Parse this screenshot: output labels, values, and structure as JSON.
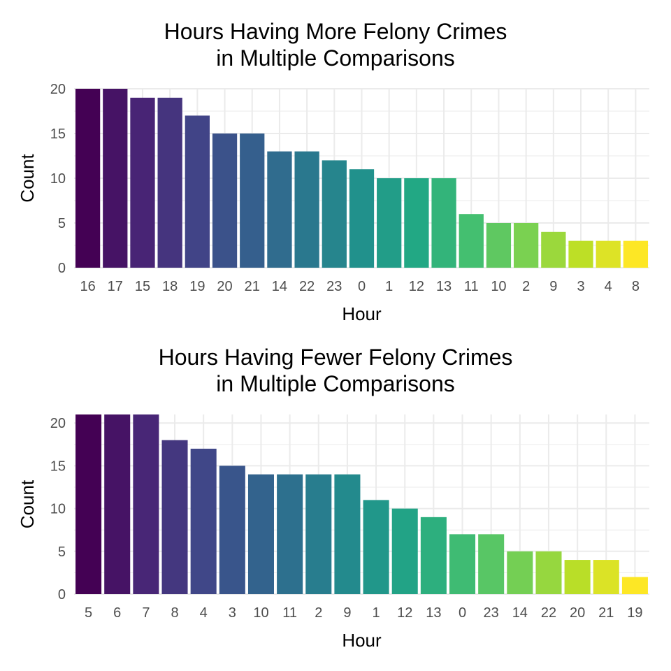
{
  "charts": [
    {
      "title_line1": "Hours Having More Felony Crimes",
      "title_line2": "in Multiple Comparisons",
      "xlabel": "Hour",
      "ylabel": "Count"
    },
    {
      "title_line1": "Hours Having Fewer Felony Crimes",
      "title_line2": "in Multiple Comparisons",
      "xlabel": "Hour",
      "ylabel": "Count"
    }
  ],
  "chart_data": [
    {
      "type": "bar",
      "title": "Hours Having More Felony Crimes in Multiple Comparisons",
      "xlabel": "Hour",
      "ylabel": "Count",
      "categories": [
        "16",
        "17",
        "15",
        "18",
        "19",
        "20",
        "21",
        "14",
        "22",
        "23",
        "0",
        "1",
        "12",
        "13",
        "11",
        "10",
        "2",
        "9",
        "3",
        "4",
        "8"
      ],
      "values": [
        20,
        20,
        19,
        19,
        17,
        15,
        15,
        13,
        13,
        12,
        11,
        10,
        10,
        10,
        6,
        5,
        5,
        4,
        3,
        3,
        3
      ],
      "ylim": [
        0,
        20
      ],
      "yticks": [
        0,
        5,
        10,
        15,
        20
      ],
      "grid": true,
      "colormap": "viridis"
    },
    {
      "type": "bar",
      "title": "Hours Having Fewer Felony Crimes in Multiple Comparisons",
      "xlabel": "Hour",
      "ylabel": "Count",
      "categories": [
        "5",
        "6",
        "7",
        "8",
        "4",
        "3",
        "10",
        "11",
        "2",
        "9",
        "1",
        "12",
        "13",
        "0",
        "23",
        "14",
        "22",
        "20",
        "21",
        "19"
      ],
      "values": [
        21,
        21,
        21,
        18,
        17,
        15,
        14,
        14,
        14,
        14,
        11,
        10,
        9,
        7,
        7,
        5,
        5,
        4,
        4,
        2
      ],
      "ylim": [
        0,
        21
      ],
      "yticks": [
        0,
        5,
        10,
        15,
        20
      ],
      "grid": true,
      "colormap": "viridis"
    }
  ]
}
